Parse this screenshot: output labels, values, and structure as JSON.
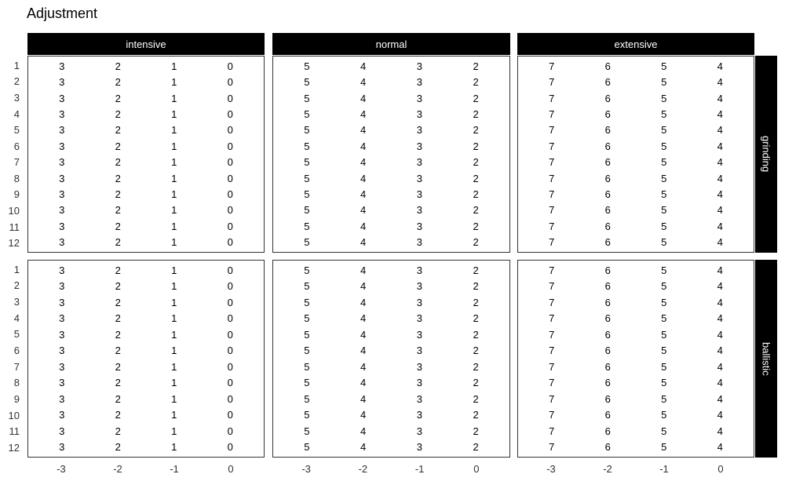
{
  "title": "Adjustment",
  "chart_data": {
    "type": "table",
    "title": "Adjustment",
    "col_facets": [
      "intensive",
      "normal",
      "extensive"
    ],
    "row_facets": [
      "grinding",
      "ballistic"
    ],
    "y_categories": [
      "1",
      "2",
      "3",
      "4",
      "5",
      "6",
      "7",
      "8",
      "9",
      "10",
      "11",
      "12"
    ],
    "x_ticklabels": [
      "-3",
      "-2",
      "-1",
      "0"
    ],
    "cell_values_by_col_facet": {
      "intensive": [
        "3",
        "2",
        "1",
        "0"
      ],
      "normal": [
        "5",
        "4",
        "3",
        "2"
      ],
      "extensive": [
        "7",
        "6",
        "5",
        "4"
      ]
    },
    "values_identical_for_all_rows_and_row_facets": true,
    "layout": {
      "legend": "none",
      "gridlines": "off",
      "facet_strip_position": "top-and-right"
    },
    "colors": {
      "strip_bg": "#000000",
      "strip_text": "#ffffff",
      "panel_border": "#333333",
      "cell_text": "#000000",
      "axis_text": "#333333",
      "background": "#ffffff"
    }
  }
}
